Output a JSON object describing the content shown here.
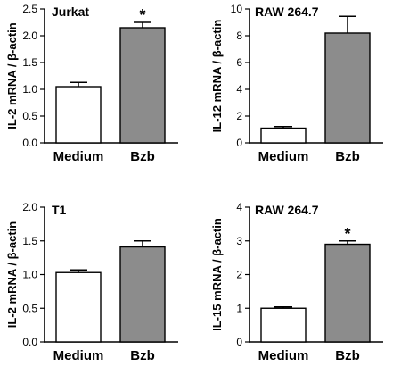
{
  "colors": {
    "medium_bar": "#ffffff",
    "bzb_bar": "#8c8c8c",
    "outline": "#000000"
  },
  "chart_data": [
    {
      "type": "bar",
      "title": "Jurkat",
      "ylabel": "IL-2 mRNA / β-actin",
      "categories": [
        "Medium",
        "Bzb"
      ],
      "values": [
        1.05,
        2.15
      ],
      "errors": [
        0.08,
        0.1
      ],
      "significance": [
        "",
        "*"
      ],
      "ylim": [
        0,
        2.5
      ],
      "yticks": [
        "0.0",
        "0.5",
        "1.0",
        "1.5",
        "2.0",
        "2.5"
      ]
    },
    {
      "type": "bar",
      "title": "RAW 264.7",
      "ylabel": "IL-12 mRNA / β-actin",
      "categories": [
        "Medium",
        "Bzb"
      ],
      "values": [
        1.1,
        8.2
      ],
      "errors": [
        0.12,
        1.25
      ],
      "significance": [
        "",
        ""
      ],
      "ylim": [
        0,
        10
      ],
      "yticks": [
        "0",
        "2",
        "4",
        "6",
        "8",
        "10"
      ]
    },
    {
      "type": "bar",
      "title": "T1",
      "ylabel": "IL-2 mRNA / β-actin",
      "categories": [
        "Medium",
        "Bzb"
      ],
      "values": [
        1.03,
        1.41
      ],
      "errors": [
        0.04,
        0.09
      ],
      "significance": [
        "",
        ""
      ],
      "ylim": [
        0,
        2.0
      ],
      "yticks": [
        "0.0",
        "0.5",
        "1.0",
        "1.5",
        "2.0"
      ]
    },
    {
      "type": "bar",
      "title": "RAW 264.7",
      "ylabel": "IL-15 mRNA / β-actin",
      "categories": [
        "Medium",
        "Bzb"
      ],
      "values": [
        1.0,
        2.9
      ],
      "errors": [
        0.04,
        0.1
      ],
      "significance": [
        "",
        "*"
      ],
      "ylim": [
        0,
        4
      ],
      "yticks": [
        "0",
        "1",
        "2",
        "3",
        "4"
      ]
    }
  ]
}
